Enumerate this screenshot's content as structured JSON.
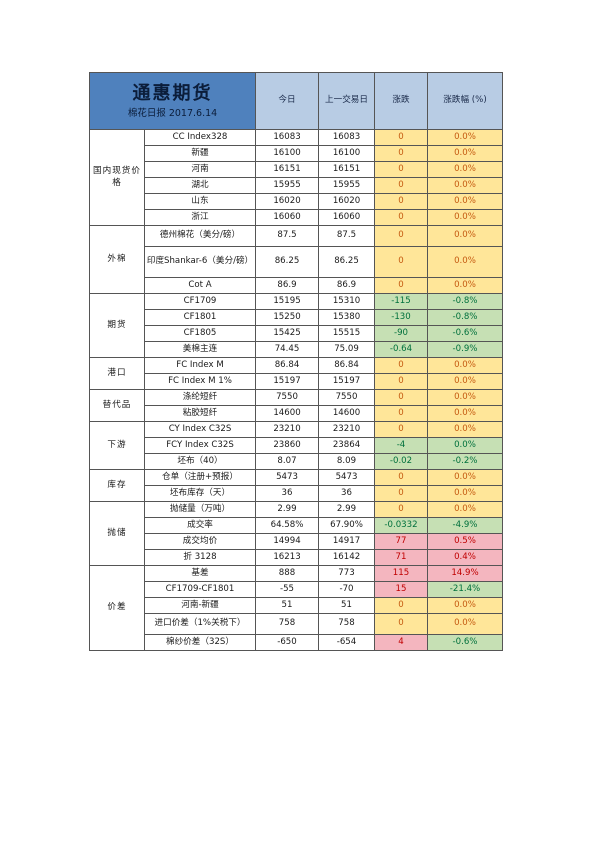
{
  "header": {
    "company": "通惠期货",
    "subtitle": "棉花日报 2017.6.14",
    "col_today": "今日",
    "col_prev": "上一交易日",
    "col_change": "涨跌",
    "col_pct": "涨跌幅 (%)"
  },
  "groups": [
    {
      "category": "国内现货价格",
      "rows": [
        {
          "name": "CC Index328",
          "today": "16083",
          "prev": "16083",
          "change": "0",
          "pct": "0.0%",
          "color": "yellow",
          "pct_color": "yellow"
        },
        {
          "name": "新疆",
          "today": "16100",
          "prev": "16100",
          "change": "0",
          "pct": "0.0%",
          "color": "yellow",
          "pct_color": "yellow"
        },
        {
          "name": "河南",
          "today": "16151",
          "prev": "16151",
          "change": "0",
          "pct": "0.0%",
          "color": "yellow",
          "pct_color": "yellow"
        },
        {
          "name": "湖北",
          "today": "15955",
          "prev": "15955",
          "change": "0",
          "pct": "0.0%",
          "color": "yellow",
          "pct_color": "yellow"
        },
        {
          "name": "山东",
          "today": "16020",
          "prev": "16020",
          "change": "0",
          "pct": "0.0%",
          "color": "yellow",
          "pct_color": "yellow"
        },
        {
          "name": "浙江",
          "today": "16060",
          "prev": "16060",
          "change": "0",
          "pct": "0.0%",
          "color": "yellow",
          "pct_color": "yellow"
        }
      ]
    },
    {
      "category": "外棉",
      "rows": [
        {
          "name": "德州棉花（美分/磅）",
          "today": "87.5",
          "prev": "87.5",
          "change": "0",
          "pct": "0.0%",
          "color": "yellow",
          "pct_color": "yellow",
          "tall": 1
        },
        {
          "name": "印度Shankar-6（美分/磅）",
          "today": "86.25",
          "prev": "86.25",
          "change": "0",
          "pct": "0.0%",
          "color": "yellow",
          "pct_color": "yellow",
          "tall": 2
        },
        {
          "name": "Cot A",
          "today": "86.9",
          "prev": "86.9",
          "change": "0",
          "pct": "0.0%",
          "color": "yellow",
          "pct_color": "yellow"
        }
      ]
    },
    {
      "category": "期货",
      "rows": [
        {
          "name": "CF1709",
          "today": "15195",
          "prev": "15310",
          "change": "-115",
          "pct": "-0.8%",
          "color": "green",
          "pct_color": "green"
        },
        {
          "name": "CF1801",
          "today": "15250",
          "prev": "15380",
          "change": "-130",
          "pct": "-0.8%",
          "color": "green",
          "pct_color": "green"
        },
        {
          "name": "CF1805",
          "today": "15425",
          "prev": "15515",
          "change": "-90",
          "pct": "-0.6%",
          "color": "green",
          "pct_color": "green"
        },
        {
          "name": "美棉主连",
          "today": "74.45",
          "prev": "75.09",
          "change": "-0.64",
          "pct": "-0.9%",
          "color": "green",
          "pct_color": "green"
        }
      ]
    },
    {
      "category": "港口",
      "rows": [
        {
          "name": "FC Index M",
          "today": "86.84",
          "prev": "86.84",
          "change": "0",
          "pct": "0.0%",
          "color": "yellow",
          "pct_color": "yellow"
        },
        {
          "name": "FC Index M 1%",
          "today": "15197",
          "prev": "15197",
          "change": "0",
          "pct": "0.0%",
          "color": "yellow",
          "pct_color": "yellow"
        }
      ]
    },
    {
      "category": "替代品",
      "rows": [
        {
          "name": "涤纶短纤",
          "today": "7550",
          "prev": "7550",
          "change": "0",
          "pct": "0.0%",
          "color": "yellow",
          "pct_color": "yellow"
        },
        {
          "name": "粘胶短纤",
          "today": "14600",
          "prev": "14600",
          "change": "0",
          "pct": "0.0%",
          "color": "yellow",
          "pct_color": "yellow"
        }
      ]
    },
    {
      "category": "下游",
      "rows": [
        {
          "name": "CY Index C32S",
          "today": "23210",
          "prev": "23210",
          "change": "0",
          "pct": "0.0%",
          "color": "yellow",
          "pct_color": "yellow"
        },
        {
          "name": "FCY Index C32S",
          "today": "23860",
          "prev": "23864",
          "change": "-4",
          "pct": "0.0%",
          "color": "green",
          "pct_color": "green"
        },
        {
          "name": "坯布（40）",
          "today": "8.07",
          "prev": "8.09",
          "change": "-0.02",
          "pct": "-0.2%",
          "color": "green",
          "pct_color": "green"
        }
      ]
    },
    {
      "category": "库存",
      "rows": [
        {
          "name": "仓单（注册+预报）",
          "today": "5473",
          "prev": "5473",
          "change": "0",
          "pct": "0.0%",
          "color": "yellow",
          "pct_color": "yellow"
        },
        {
          "name": "坯布库存（天）",
          "today": "36",
          "prev": "36",
          "change": "0",
          "pct": "0.0%",
          "color": "yellow",
          "pct_color": "yellow"
        }
      ]
    },
    {
      "category": "抛储",
      "rows": [
        {
          "name": "抛储量（万吨）",
          "today": "2.99",
          "prev": "2.99",
          "change": "0",
          "pct": "0.0%",
          "color": "yellow",
          "pct_color": "yellow"
        },
        {
          "name": "成交率",
          "today": "64.58%",
          "prev": "67.90%",
          "change": "-0.0332",
          "pct": "-4.9%",
          "color": "green",
          "pct_color": "green"
        },
        {
          "name": "成交均价",
          "today": "14994",
          "prev": "14917",
          "change": "77",
          "pct": "0.5%",
          "color": "red",
          "pct_color": "red"
        },
        {
          "name": "折 3128",
          "today": "16213",
          "prev": "16142",
          "change": "71",
          "pct": "0.4%",
          "color": "red",
          "pct_color": "red"
        }
      ]
    },
    {
      "category": "价差",
      "rows": [
        {
          "name": "基差",
          "today": "888",
          "prev": "773",
          "change": "115",
          "pct": "14.9%",
          "color": "red",
          "pct_color": "red"
        },
        {
          "name": "CF1709-CF1801",
          "today": "-55",
          "prev": "-70",
          "change": "15",
          "pct": "-21.4%",
          "color": "red",
          "pct_color": "green"
        },
        {
          "name": "河南-新疆",
          "today": "51",
          "prev": "51",
          "change": "0",
          "pct": "0.0%",
          "color": "yellow",
          "pct_color": "yellow"
        },
        {
          "name": "进口价差（1%关税下）",
          "today": "758",
          "prev": "758",
          "change": "0",
          "pct": "0.0%",
          "color": "yellow",
          "pct_color": "yellow",
          "tall": 1
        },
        {
          "name": "棉纱价差（32S）",
          "today": "-650",
          "prev": "-654",
          "change": "4",
          "pct": "-0.6%",
          "color": "red",
          "pct_color": "green"
        }
      ]
    }
  ]
}
